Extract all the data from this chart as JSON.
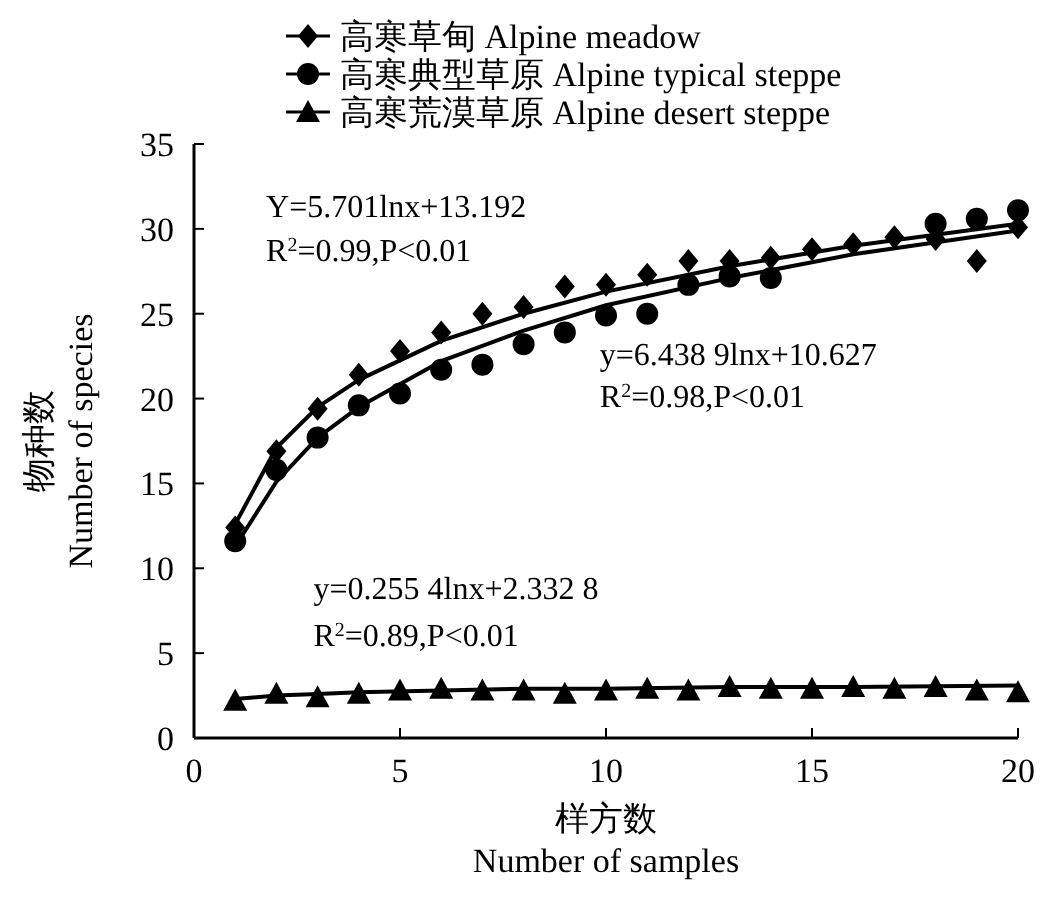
{
  "chart_data": {
    "type": "scatter",
    "xlabel": "样方数\nNumber of samples",
    "ylabel": "物种数\nNumber of species",
    "xlim": [
      0,
      20
    ],
    "xticks": [
      0,
      5,
      10,
      15,
      20
    ],
    "ylim": [
      0,
      35
    ],
    "yticks": [
      0,
      5,
      10,
      15,
      20,
      25,
      30,
      35
    ],
    "legend": "top",
    "grid": false,
    "x": [
      1,
      2,
      3,
      4,
      5,
      6,
      7,
      8,
      9,
      10,
      11,
      12,
      13,
      14,
      15,
      16,
      17,
      18,
      19,
      20
    ],
    "series": [
      {
        "name": "高寒草甸 Alpine meadow",
        "color": "#000000",
        "marker": "diamond",
        "values": [
          12.4,
          16.9,
          19.4,
          21.4,
          22.8,
          23.9,
          25.0,
          25.4,
          26.6,
          26.7,
          27.3,
          28.1,
          28.1,
          28.3,
          28.8,
          29.1,
          29.5,
          29.4,
          28.1,
          30.1
        ]
      },
      {
        "name": "高寒典型草原 Alpine typical steppe",
        "color": "#000000",
        "marker": "circle",
        "values": [
          11.6,
          15.8,
          17.7,
          19.6,
          20.3,
          21.7,
          22.0,
          23.2,
          23.9,
          24.9,
          25.0,
          26.7,
          27.2,
          27.1,
          null,
          null,
          null,
          30.3,
          30.6,
          31.1
        ]
      },
      {
        "name": "高寒荒漠草原 Alpine desert steppe",
        "color": "#000000",
        "marker": "triangle",
        "values": [
          2.2,
          2.6,
          2.4,
          2.6,
          2.8,
          2.9,
          2.8,
          2.8,
          2.6,
          2.8,
          2.9,
          2.8,
          3.0,
          2.9,
          2.9,
          3.0,
          2.9,
          3.0,
          2.8,
          2.7
        ]
      },
      {
        "type": "line",
        "color": "#000000",
        "marker": "none",
        "x": [
          1,
          2,
          3,
          4,
          6,
          8,
          10,
          13,
          16,
          20
        ],
        "values": [
          12.6,
          17.1,
          19.5,
          21.1,
          23.4,
          25.0,
          26.3,
          27.8,
          29.0,
          30.3
        ]
      },
      {
        "type": "line",
        "color": "#000000",
        "marker": "none",
        "x": [
          1,
          2,
          3,
          4,
          6,
          8,
          10,
          13,
          16,
          20
        ],
        "values": [
          11.3,
          15.1,
          17.7,
          19.5,
          22.2,
          24.0,
          25.5,
          27.1,
          28.5,
          29.9
        ]
      },
      {
        "type": "line",
        "color": "#000000",
        "marker": "none",
        "x": [
          1,
          2,
          3,
          4,
          6,
          8,
          10,
          13,
          16,
          20
        ],
        "values": [
          2.3,
          2.5,
          2.6,
          2.7,
          2.8,
          2.9,
          2.9,
          3.0,
          3.0,
          3.1
        ]
      }
    ],
    "annotations": [
      "Y=5.701lnx+13.192",
      "R$^{2}$=0.99,P<0.01",
      "y=6.438 9lnx+10.627",
      "R$^{2}$=0.98,P<0.01",
      "y=0.255 4lnx+2.332 8",
      "R$^{2}$=0.89,P<0.01"
    ]
  }
}
